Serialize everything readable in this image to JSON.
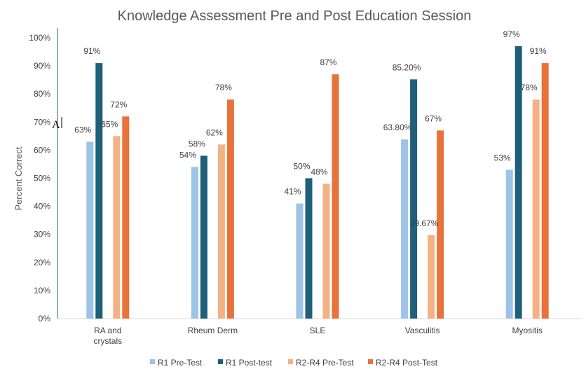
{
  "chart_data": {
    "type": "bar",
    "title": "Knowledge Assessment Pre and Post Education Session",
    "xlabel": "",
    "ylabel": "Percent Correct",
    "ylim": [
      0,
      100
    ],
    "yticks": [
      "0%",
      "10%",
      "20%",
      "30%",
      "40%",
      "50%",
      "60%",
      "70%",
      "80%",
      "90%",
      "100%"
    ],
    "grid": false,
    "legend": "bottom",
    "categories": [
      [
        "RA and",
        "crystals"
      ],
      [
        "Rheum Derm"
      ],
      [
        "SLE"
      ],
      [
        "Vasculitis"
      ],
      [
        "Myositis"
      ]
    ],
    "series": [
      {
        "name": "R1 Pre-Test",
        "color": "#9dc3e6",
        "values": [
          63,
          54,
          41,
          63.8,
          53
        ],
        "labels": [
          "63%",
          "54%",
          "41%",
          "63.80%",
          "53%"
        ]
      },
      {
        "name": "R1 Post-test",
        "color": "#1f5f7a",
        "values": [
          91,
          58,
          50,
          85.2,
          97
        ],
        "labels": [
          "91%",
          "58%",
          "50%",
          "85.20%",
          "97%"
        ]
      },
      {
        "name": "R2-R4 Pre-Test",
        "color": "#f4b183",
        "values": [
          65,
          62,
          48,
          29.67,
          78
        ],
        "labels": [
          "65%",
          "62%",
          "48%",
          "29.67%",
          "78%"
        ]
      },
      {
        "name": "R2-R4 Post-Test",
        "color": "#e8733a",
        "values": [
          72,
          78,
          87,
          67,
          91
        ],
        "labels": [
          "72%",
          "78%",
          "87%",
          "67%",
          "91%"
        ]
      }
    ],
    "annotation": "A"
  }
}
